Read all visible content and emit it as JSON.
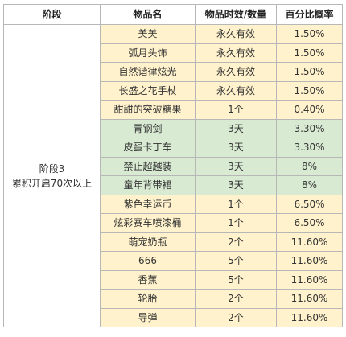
{
  "table": {
    "headers": [
      "阶段",
      "物品名",
      "物品时效/数量",
      "百分比概率"
    ],
    "stage": {
      "line1": "阶段3",
      "line2": "累积开启70次以上"
    },
    "colors": {
      "beige": "#fff2cc",
      "green": "#d9ead3",
      "border": "#b7b7b7"
    },
    "rows": [
      {
        "name": "美美",
        "duration": "永久有效",
        "probability": "1.50%",
        "tint": "beige"
      },
      {
        "name": "弧月头饰",
        "duration": "永久有效",
        "probability": "1.50%",
        "tint": "beige"
      },
      {
        "name": "自然谐律炫光",
        "duration": "永久有效",
        "probability": "1.50%",
        "tint": "beige"
      },
      {
        "name": "长盛之花手杖",
        "duration": "永久有效",
        "probability": "1.50%",
        "tint": "beige"
      },
      {
        "name": "甜甜的突破糖果",
        "duration": "1个",
        "probability": "0.40%",
        "tint": "beige"
      },
      {
        "name": "青钢剑",
        "duration": "3天",
        "probability": "3.30%",
        "tint": "green"
      },
      {
        "name": "皮蛋卡丁车",
        "duration": "3天",
        "probability": "3.30%",
        "tint": "green"
      },
      {
        "name": "禁止超越装",
        "duration": "3天",
        "probability": "8%",
        "tint": "green"
      },
      {
        "name": "童年背带裙",
        "duration": "3天",
        "probability": "8%",
        "tint": "green"
      },
      {
        "name": "紫色幸运币",
        "duration": "1个",
        "probability": "6.50%",
        "tint": "beige"
      },
      {
        "name": "炫彩赛车喷漆桶",
        "duration": "1个",
        "probability": "6.50%",
        "tint": "beige"
      },
      {
        "name": "萌宠奶瓶",
        "duration": "2个",
        "probability": "11.60%",
        "tint": "beige"
      },
      {
        "name": "666",
        "duration": "5个",
        "probability": "11.60%",
        "tint": "beige"
      },
      {
        "name": "香蕉",
        "duration": "5个",
        "probability": "11.60%",
        "tint": "beige"
      },
      {
        "name": "轮胎",
        "duration": "2个",
        "probability": "11.60%",
        "tint": "beige"
      },
      {
        "name": "导弹",
        "duration": "2个",
        "probability": "11.60%",
        "tint": "beige"
      }
    ]
  }
}
